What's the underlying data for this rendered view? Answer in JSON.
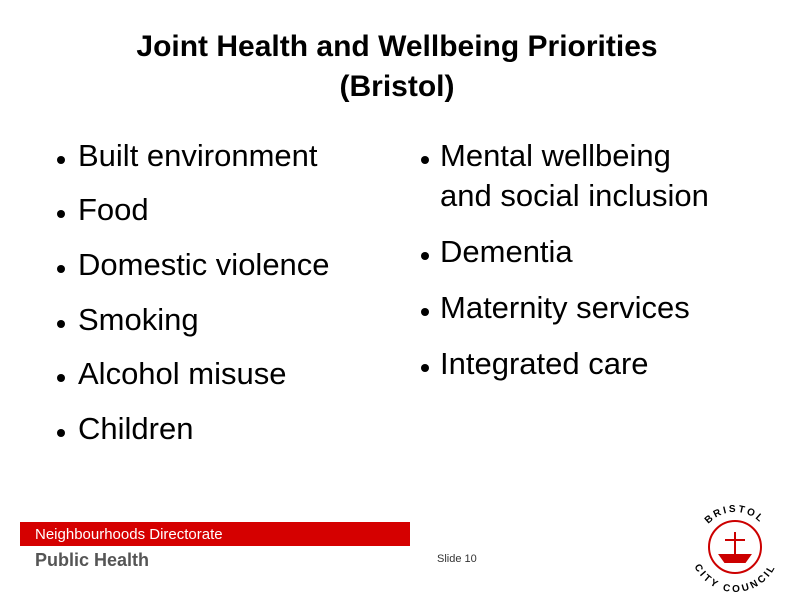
{
  "title": [
    "Joint Health and Wellbeing Priorities",
    "(Bristol)"
  ],
  "left_bullets": [
    "Built environment",
    "Food",
    "Domestic violence",
    "Smoking",
    "Alcohol misuse",
    "Children"
  ],
  "right_bullets": [
    [
      "Mental wellbeing",
      "and social inclusion"
    ],
    [
      "Dementia"
    ],
    [
      "Maternity services"
    ],
    [
      "Integrated care"
    ]
  ],
  "footer": {
    "directorate": "Neighbourhoods Directorate",
    "department": "Public Health",
    "slide": "Slide 10"
  },
  "logo": {
    "top": "BRISTOL",
    "bottom": "CITY COUNCIL"
  }
}
